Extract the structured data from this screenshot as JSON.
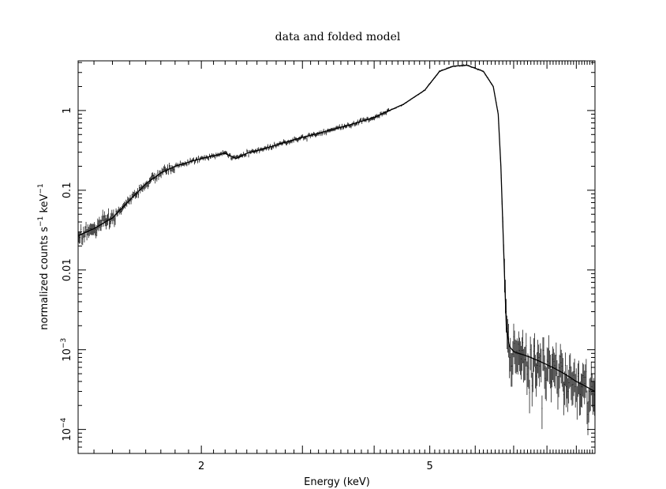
{
  "chart_data": {
    "type": "line",
    "title": "data and folded model",
    "xlabel": "Energy (keV)",
    "ylabel_main": "normalized counts s",
    "ylabel_sup1": "−1",
    "ylabel_mid": " keV",
    "ylabel_sup2": "−1",
    "x_scale": "log",
    "y_scale": "log",
    "xlim": [
      1.22,
      9.7
    ],
    "ylim": [
      5e-05,
      4.2
    ],
    "grid": false,
    "legend": "none",
    "x_ticks": [
      {
        "value": 2,
        "label": "2"
      },
      {
        "value": 5,
        "label": "5"
      }
    ],
    "y_ticks": [
      {
        "value": 1,
        "base": "1",
        "exp": ""
      },
      {
        "value": 0.1,
        "base": "0.1",
        "exp": ""
      },
      {
        "value": 0.01,
        "base": "0.01",
        "exp": ""
      },
      {
        "value": 0.001,
        "base": "10",
        "exp": "−3"
      },
      {
        "value": 0.0001,
        "base": "10",
        "exp": "−4"
      }
    ],
    "series": [
      {
        "kind": "folded_model",
        "color": "#000000",
        "x": [
          1.22,
          1.3,
          1.4,
          1.5,
          1.6,
          1.7,
          1.8,
          1.9,
          2.0,
          2.1,
          2.2,
          2.3,
          2.4,
          2.6,
          2.8,
          3.0,
          3.3,
          3.6,
          4.0,
          4.5,
          4.9,
          5.2,
          5.5,
          5.8,
          6.2,
          6.45,
          6.58,
          6.65,
          6.7,
          6.75,
          6.8,
          6.88,
          7.0,
          7.5,
          8.0,
          8.5,
          9.0,
          9.7
        ],
        "y": [
          0.027,
          0.033,
          0.045,
          0.075,
          0.12,
          0.165,
          0.2,
          0.225,
          0.25,
          0.27,
          0.29,
          0.25,
          0.29,
          0.34,
          0.4,
          0.46,
          0.55,
          0.65,
          0.82,
          1.2,
          1.8,
          3.1,
          3.6,
          3.7,
          3.1,
          2.0,
          0.9,
          0.2,
          0.04,
          0.008,
          0.0018,
          0.0011,
          0.00095,
          0.0008,
          0.00065,
          0.00052,
          0.0004,
          0.0003
        ]
      }
    ]
  }
}
